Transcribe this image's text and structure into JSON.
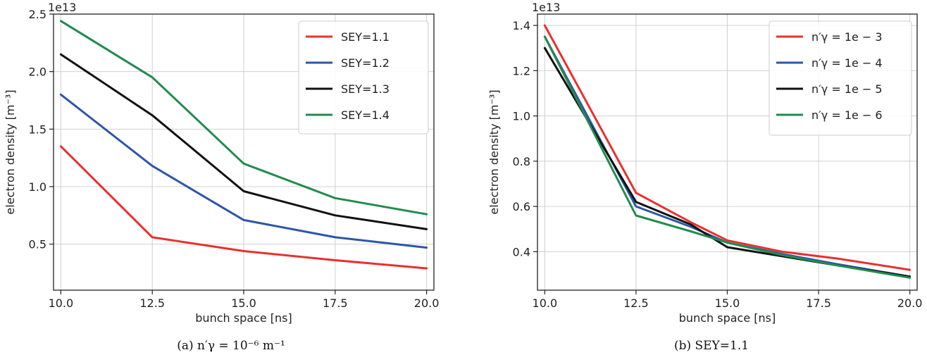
{
  "chart_data": [
    {
      "type": "line",
      "caption": "(a) n′γ = 10⁻⁶ m⁻¹",
      "xlabel": "bunch space [ns]",
      "ylabel": "electron density [m⁻³]",
      "y_scale_label": "1e13",
      "xlim": [
        9.8,
        20.2
      ],
      "ylim": [
        0.1,
        2.5
      ],
      "xticks": [
        "10.0",
        "12.5",
        "15.0",
        "17.5",
        "20.0"
      ],
      "xtick_values": [
        10,
        12.5,
        15,
        17.5,
        20
      ],
      "yticks": [
        "0.5",
        "1.0",
        "1.5",
        "2.0",
        "2.5"
      ],
      "ytick_values": [
        0.5,
        1.0,
        1.5,
        2.0,
        2.5
      ],
      "grid": true,
      "legend_position": "top-right",
      "x": [
        10,
        12.5,
        15,
        17.5,
        20
      ],
      "series": [
        {
          "name": "SEY=1.1",
          "color": "#e8302e",
          "values": [
            1.35,
            0.56,
            0.44,
            0.36,
            0.29
          ]
        },
        {
          "name": "SEY=1.2",
          "color": "#2d56a8",
          "values": [
            1.8,
            1.18,
            0.71,
            0.56,
            0.47
          ]
        },
        {
          "name": "SEY=1.3",
          "color": "#111111",
          "values": [
            2.15,
            1.62,
            0.96,
            0.75,
            0.63
          ]
        },
        {
          "name": "SEY=1.4",
          "color": "#228b4e",
          "values": [
            2.44,
            1.95,
            1.2,
            0.9,
            0.76
          ]
        }
      ]
    },
    {
      "type": "line",
      "caption": "(b) SEY=1.1",
      "xlabel": "bunch space [ns]",
      "ylabel": "electron density [m⁻³]",
      "y_scale_label": "1e13",
      "xlim": [
        9.8,
        20.2
      ],
      "ylim": [
        0.23,
        1.45
      ],
      "xticks": [
        "10.0",
        "12.5",
        "15.0",
        "17.5",
        "20.0"
      ],
      "xtick_values": [
        10,
        12.5,
        15,
        17.5,
        20
      ],
      "yticks": [
        "0.4",
        "0.6",
        "0.8",
        "1.0",
        "1.2",
        "1.4"
      ],
      "ytick_values": [
        0.4,
        0.6,
        0.8,
        1.0,
        1.2,
        1.4
      ],
      "grid": true,
      "legend_position": "top-right",
      "series": [
        {
          "name": "n′γ = 1e − 3",
          "color": "#e8302e",
          "x": [
            10,
            12.5,
            14,
            15,
            16.5,
            18,
            20
          ],
          "values": [
            1.4,
            0.66,
            0.53,
            0.45,
            0.4,
            0.37,
            0.32
          ]
        },
        {
          "name": "n′γ = 1e − 4",
          "color": "#2d56a8",
          "x": [
            10,
            12.5,
            14,
            15,
            16.5,
            18,
            20
          ],
          "values": [
            1.35,
            0.6,
            0.51,
            0.44,
            0.39,
            0.345,
            0.29
          ]
        },
        {
          "name": "n′γ = 1e − 5",
          "color": "#111111",
          "x": [
            10,
            12.5,
            14,
            15,
            16.5,
            18,
            20
          ],
          "values": [
            1.3,
            0.62,
            0.52,
            0.42,
            0.38,
            0.34,
            0.29
          ]
        },
        {
          "name": "n′γ = 1e − 6",
          "color": "#228b4e",
          "x": [
            10,
            12.5,
            14,
            15,
            16.5,
            18,
            20
          ],
          "values": [
            1.35,
            0.56,
            0.49,
            0.44,
            0.385,
            0.34,
            0.285
          ]
        }
      ]
    }
  ]
}
